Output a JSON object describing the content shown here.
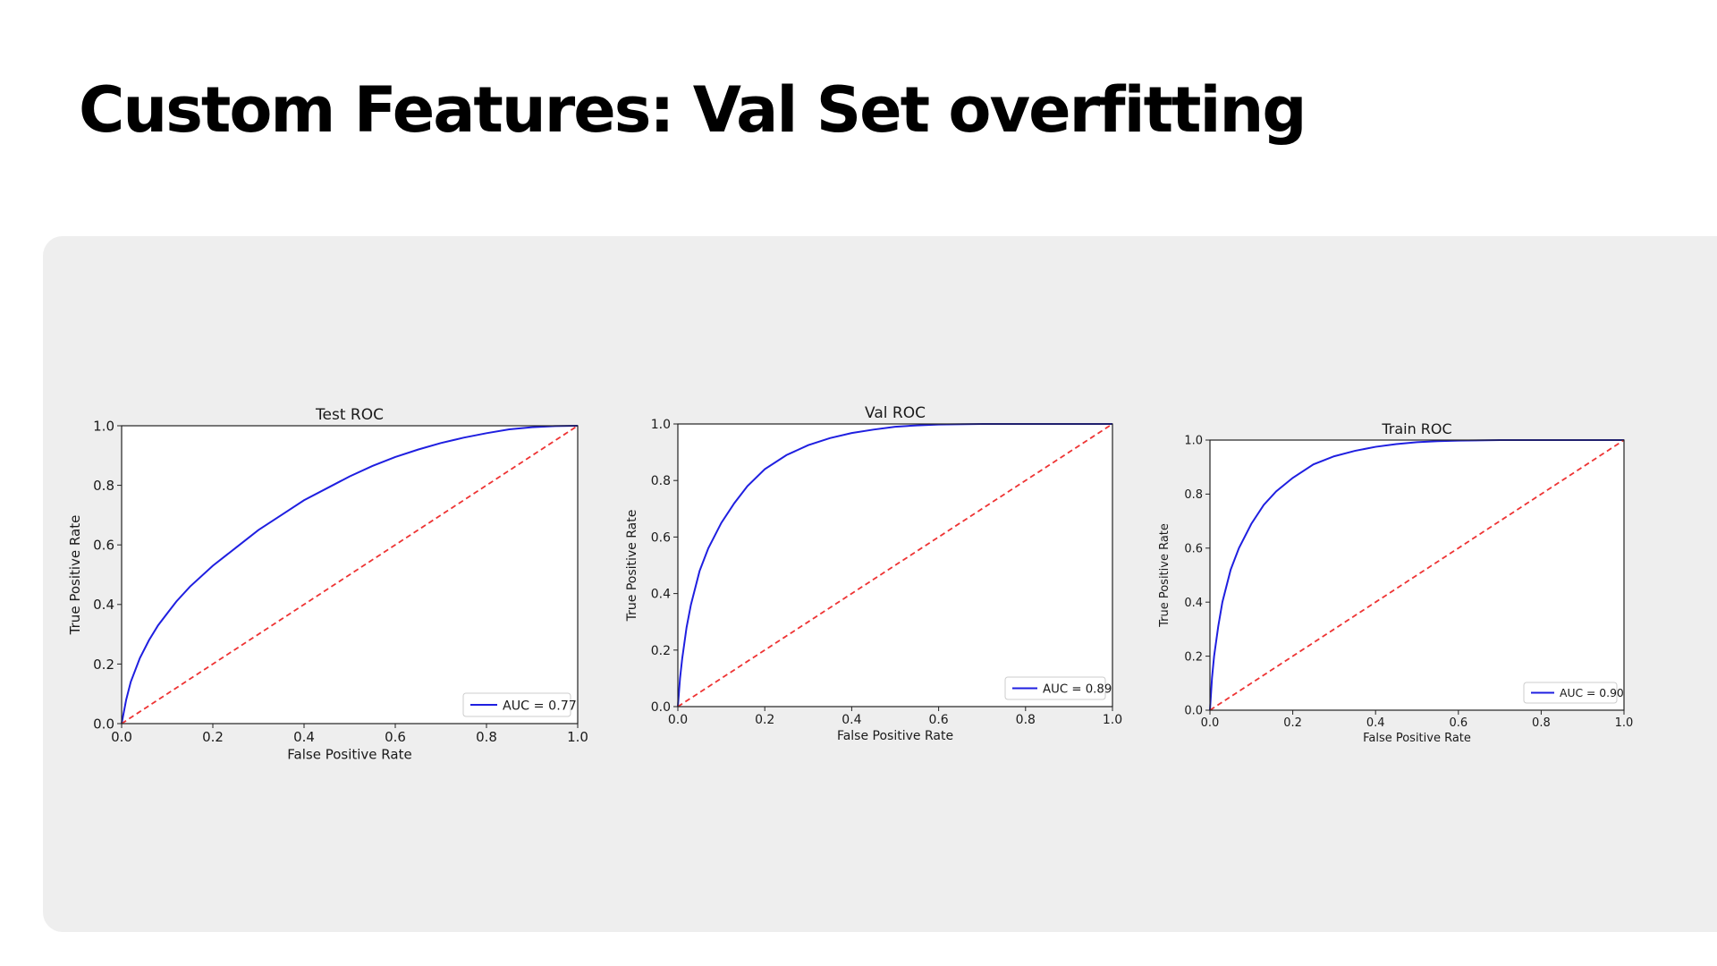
{
  "slide": {
    "title": "Custom Features: Val Set overfitting"
  },
  "colors": {
    "background": "#ffffff",
    "panel": "#eeeeee",
    "roc_curve": "#1f1fe0",
    "chance_line": "#ee3333"
  },
  "chart_data": [
    {
      "type": "line",
      "title": "Test ROC",
      "xlabel": "False Positive Rate",
      "ylabel": "True Positive Rate",
      "xlim": [
        0,
        1
      ],
      "ylim": [
        0,
        1
      ],
      "xticks": [
        "0.0",
        "0.2",
        "0.4",
        "0.6",
        "0.8",
        "1.0"
      ],
      "yticks": [
        "0.0",
        "0.2",
        "0.4",
        "0.6",
        "0.8",
        "1.0"
      ],
      "grid": false,
      "legend_position": "bottom-right",
      "series": [
        {
          "name": "AUC = 0.77",
          "style": "solid",
          "x": [
            0,
            0.01,
            0.02,
            0.04,
            0.06,
            0.08,
            0.1,
            0.12,
            0.15,
            0.2,
            0.25,
            0.3,
            0.35,
            0.4,
            0.45,
            0.5,
            0.55,
            0.6,
            0.65,
            0.7,
            0.75,
            0.8,
            0.85,
            0.9,
            0.95,
            1
          ],
          "y": [
            0,
            0.08,
            0.14,
            0.22,
            0.28,
            0.33,
            0.37,
            0.41,
            0.46,
            0.53,
            0.59,
            0.65,
            0.7,
            0.75,
            0.79,
            0.83,
            0.865,
            0.895,
            0.92,
            0.942,
            0.96,
            0.975,
            0.988,
            0.995,
            0.999,
            1.0
          ]
        },
        {
          "style": "dashed",
          "x": [
            0,
            1
          ],
          "y": [
            0,
            1
          ]
        }
      ]
    },
    {
      "type": "line",
      "title": "Val ROC",
      "xlabel": "False Positive Rate",
      "ylabel": "True Positive Rate",
      "xlim": [
        0,
        1
      ],
      "ylim": [
        0,
        1
      ],
      "xticks": [
        "0.0",
        "0.2",
        "0.4",
        "0.6",
        "0.8",
        "1.0"
      ],
      "yticks": [
        "0.0",
        "0.2",
        "0.4",
        "0.6",
        "0.8",
        "1.0"
      ],
      "grid": false,
      "legend_position": "bottom-right",
      "series": [
        {
          "name": "AUC = 0.89",
          "style": "solid",
          "x": [
            0,
            0.005,
            0.01,
            0.02,
            0.03,
            0.05,
            0.07,
            0.1,
            0.13,
            0.16,
            0.2,
            0.25,
            0.3,
            0.35,
            0.4,
            0.45,
            0.5,
            0.55,
            0.6,
            0.7,
            0.8,
            0.9,
            1
          ],
          "y": [
            0,
            0.1,
            0.17,
            0.28,
            0.36,
            0.48,
            0.56,
            0.65,
            0.72,
            0.78,
            0.84,
            0.89,
            0.925,
            0.95,
            0.968,
            0.98,
            0.99,
            0.995,
            0.998,
            1.0,
            1.0,
            1.0,
            1.0
          ]
        },
        {
          "style": "dashed",
          "x": [
            0,
            1
          ],
          "y": [
            0,
            1
          ]
        }
      ]
    },
    {
      "type": "line",
      "title": "Train ROC",
      "xlabel": "False Positive Rate",
      "ylabel": "True Positive Rate",
      "xlim": [
        0,
        1
      ],
      "ylim": [
        0,
        1
      ],
      "xticks": [
        "0.0",
        "0.2",
        "0.4",
        "0.6",
        "0.8",
        "1.0"
      ],
      "yticks": [
        "0.0",
        "0.2",
        "0.4",
        "0.6",
        "0.8",
        "1.0"
      ],
      "grid": false,
      "legend_position": "bottom-right",
      "series": [
        {
          "name": "AUC = 0.90",
          "style": "solid",
          "x": [
            0,
            0.005,
            0.01,
            0.02,
            0.03,
            0.05,
            0.07,
            0.1,
            0.13,
            0.16,
            0.2,
            0.25,
            0.3,
            0.35,
            0.4,
            0.45,
            0.5,
            0.55,
            0.6,
            0.7,
            0.8,
            0.9,
            1
          ],
          "y": [
            0,
            0.12,
            0.2,
            0.31,
            0.4,
            0.52,
            0.6,
            0.69,
            0.76,
            0.81,
            0.86,
            0.91,
            0.94,
            0.96,
            0.975,
            0.985,
            0.992,
            0.996,
            0.998,
            1.0,
            1.0,
            1.0,
            1.0
          ]
        },
        {
          "style": "dashed",
          "x": [
            0,
            1
          ],
          "y": [
            0,
            1
          ]
        }
      ]
    }
  ]
}
